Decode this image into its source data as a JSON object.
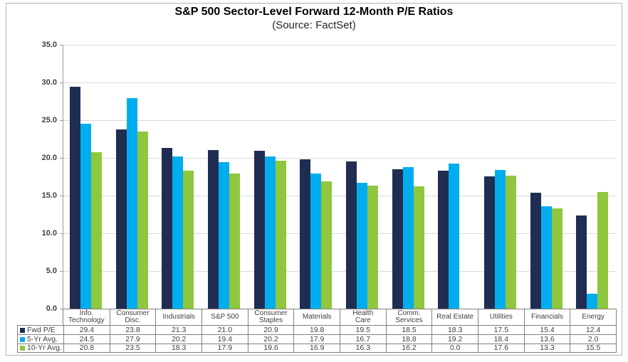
{
  "title": "S&P 500 Sector-Level Forward 12-Month P/E Ratios",
  "subtitle": "(Source: FactSet)",
  "chart_data": {
    "type": "bar",
    "title": "S&P 500 Sector-Level Forward 12-Month P/E Ratios",
    "subtitle": "(Source: FactSet)",
    "categories": [
      "Info. Technology",
      "Consumer Disc.",
      "Industrials",
      "S&P 500",
      "Consumer Staples",
      "Materials",
      "Health Care",
      "Comm. Services",
      "Real Estate",
      "Utilities",
      "Financials",
      "Energy"
    ],
    "category_label_lines": [
      [
        "Info.",
        "Technology"
      ],
      [
        "Consumer",
        "Disc."
      ],
      [
        "Industrials"
      ],
      [
        "S&P 500"
      ],
      [
        "Consumer",
        "Staples"
      ],
      [
        "Materials"
      ],
      [
        "Health",
        "Care"
      ],
      [
        "Comm.",
        "Services"
      ],
      [
        "Real Estate"
      ],
      [
        "Utilities"
      ],
      [
        "Financials"
      ],
      [
        "Energy"
      ]
    ],
    "series": [
      {
        "name": "Fwd P/E",
        "color": "#1F2D52",
        "values": [
          29.4,
          23.8,
          21.3,
          21.0,
          20.9,
          19.8,
          19.5,
          18.5,
          18.3,
          17.5,
          15.4,
          12.4
        ]
      },
      {
        "name": "5-Yr Avg.",
        "color": "#00AEEF",
        "values": [
          24.5,
          27.9,
          20.2,
          19.4,
          20.2,
          17.9,
          16.7,
          18.8,
          19.2,
          18.4,
          13.6,
          2.0
        ]
      },
      {
        "name": "10-Yr Avg.",
        "color": "#8FC73E",
        "values": [
          20.8,
          23.5,
          18.3,
          17.9,
          19.6,
          16.9,
          16.3,
          16.2,
          0.0,
          17.6,
          13.3,
          15.5
        ]
      }
    ],
    "ylim": [
      0,
      35
    ],
    "ytick_step": 5,
    "ytick_labels": [
      "0.0",
      "5.0",
      "10.0",
      "15.0",
      "20.0",
      "25.0",
      "30.0",
      "35.0"
    ],
    "grid": true,
    "legend_position": "data-table-left",
    "value_format_decimals": 1
  },
  "colors": {
    "series_fwd_pe": "#1F2D52",
    "series_5yr_avg": "#00AEEF",
    "series_10yr_avg": "#8FC73E",
    "gridline": "#D9D9D9",
    "axis": "#999999",
    "table_border": "#808080",
    "text": "#404040",
    "frame_border": "#B3B3B3"
  }
}
